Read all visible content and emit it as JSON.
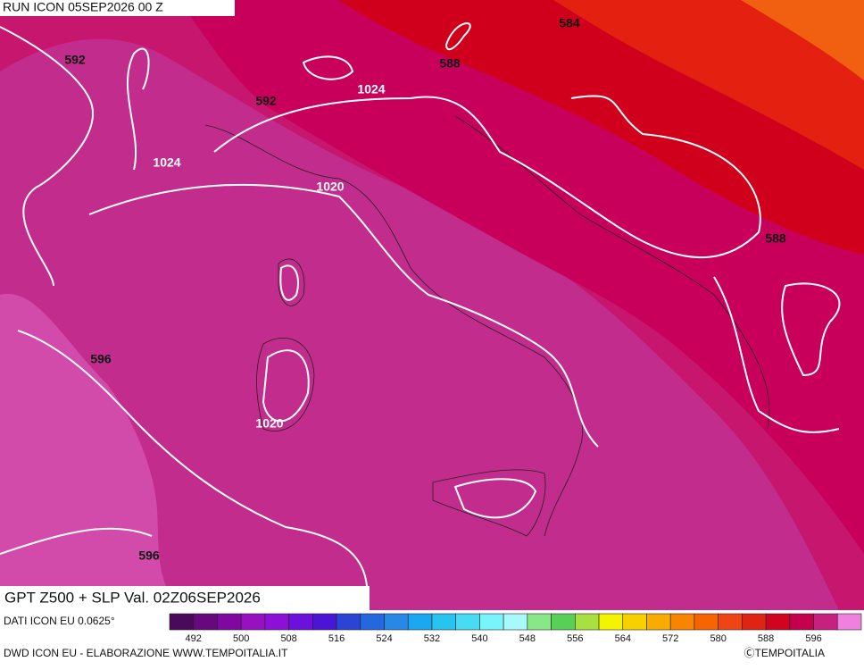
{
  "header": {
    "run": "RUN ICON 05SEP2026 00 Z",
    "title": "GPT Z500 + SLP Val. 02Z06SEP2026"
  },
  "contour_labels": [
    "592",
    "584",
    "588",
    "1024",
    "592",
    "1024",
    "1020",
    "588",
    "596",
    "1020",
    "596"
  ],
  "legend": {
    "colors": [
      "#4a0a5c",
      "#68087e",
      "#8008a0",
      "#9810c0",
      "#8c10d8",
      "#6c10dc",
      "#4c14d4",
      "#2c44d4",
      "#2468e0",
      "#2888e8",
      "#1ca8f0",
      "#28c4f0",
      "#48dcf4",
      "#78f4fa",
      "#a8fafa",
      "#88e888",
      "#58d058",
      "#a8e040",
      "#f4f400",
      "#f8d000",
      "#f8ac00",
      "#f88400",
      "#f86400",
      "#f04414",
      "#e02414",
      "#d00420",
      "#c4004c",
      "#c82080",
      "#f080e0"
    ],
    "ticks": [
      "492",
      "500",
      "508",
      "516",
      "524",
      "532",
      "540",
      "548",
      "556",
      "564",
      "572",
      "580",
      "588",
      "596"
    ]
  },
  "footer": {
    "source": "DATI ICON EU 0.0625°",
    "credit": "DWD ICON EU - ELABORAZIONE WWW.TEMPOITALIA.IT",
    "copyright": "ⒸTEMPOITALIA"
  }
}
